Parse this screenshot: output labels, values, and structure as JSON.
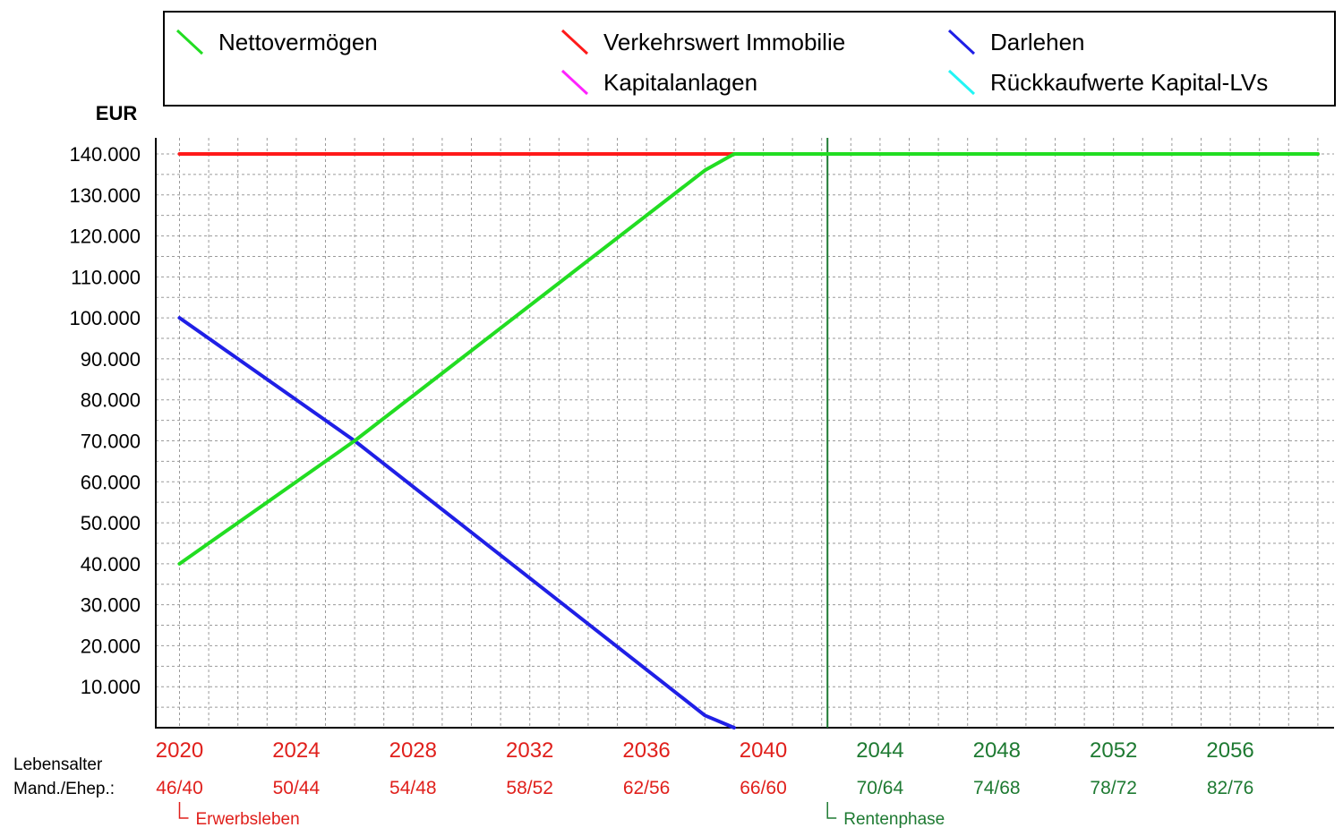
{
  "chart_data": {
    "type": "line",
    "title": "",
    "ylabel": "EUR",
    "xlabel": "",
    "xlim": [
      2020,
      2059
    ],
    "ylim": [
      0,
      140000
    ],
    "grid": true,
    "legend_position": "top",
    "y_ticks": [
      {
        "value": 140000,
        "label": "140.000"
      },
      {
        "value": 130000,
        "label": "130.000"
      },
      {
        "value": 120000,
        "label": "120.000"
      },
      {
        "value": 110000,
        "label": "110.000"
      },
      {
        "value": 100000,
        "label": "100.000"
      },
      {
        "value": 90000,
        "label": "90.000"
      },
      {
        "value": 80000,
        "label": "80.000"
      },
      {
        "value": 70000,
        "label": "70.000"
      },
      {
        "value": 60000,
        "label": "60.000"
      },
      {
        "value": 50000,
        "label": "50.000"
      },
      {
        "value": 40000,
        "label": "40.000"
      },
      {
        "value": 30000,
        "label": "30.000"
      },
      {
        "value": 20000,
        "label": "20.000"
      },
      {
        "value": 10000,
        "label": "10.000"
      }
    ],
    "x_ticks": [
      {
        "year": 2020,
        "label": "2020",
        "age": "46/40",
        "phase": "erwerb"
      },
      {
        "year": 2024,
        "label": "2024",
        "age": "50/44",
        "phase": "erwerb"
      },
      {
        "year": 2028,
        "label": "2028",
        "age": "54/48",
        "phase": "erwerb"
      },
      {
        "year": 2032,
        "label": "2032",
        "age": "58/52",
        "phase": "erwerb"
      },
      {
        "year": 2036,
        "label": "2036",
        "age": "62/56",
        "phase": "erwerb"
      },
      {
        "year": 2040,
        "label": "2040",
        "age": "66/60",
        "phase": "erwerb"
      },
      {
        "year": 2044,
        "label": "2044",
        "age": "70/64",
        "phase": "rente"
      },
      {
        "year": 2048,
        "label": "2048",
        "age": "74/68",
        "phase": "rente"
      },
      {
        "year": 2052,
        "label": "2052",
        "age": "78/72",
        "phase": "rente"
      },
      {
        "year": 2056,
        "label": "2056",
        "age": "82/76",
        "phase": "rente"
      }
    ],
    "row_labels": [
      "Lebensalter",
      "Mand./Ehep.:"
    ],
    "phases": [
      {
        "key": "erwerb",
        "label": "Erwerbsleben",
        "start_year": 2020,
        "color": "#e0201c"
      },
      {
        "key": "rente",
        "label": "Rentenphase",
        "start_year": 2042.2,
        "color": "#1e7a32"
      }
    ],
    "series": [
      {
        "name": "Nettovermögen",
        "color": "#22dd22",
        "points": [
          [
            2020,
            40000
          ],
          [
            2026,
            70000
          ],
          [
            2038,
            136000
          ],
          [
            2039,
            140000
          ],
          [
            2059,
            140000
          ]
        ]
      },
      {
        "name": "Verkehrswert Immobilie",
        "color": "#ff1a1a",
        "points": [
          [
            2020,
            140000
          ],
          [
            2059,
            140000
          ]
        ]
      },
      {
        "name": "Darlehen",
        "color": "#1f1fe6",
        "points": [
          [
            2020,
            100000
          ],
          [
            2026,
            70000
          ],
          [
            2038,
            3000
          ],
          [
            2039,
            0
          ]
        ]
      },
      {
        "name": "Kapitalanlagen",
        "color": "#ff22ff",
        "points": []
      },
      {
        "name": "Rückkaufwerte Kapital-LVs",
        "color": "#22f5f5",
        "points": []
      }
    ]
  }
}
